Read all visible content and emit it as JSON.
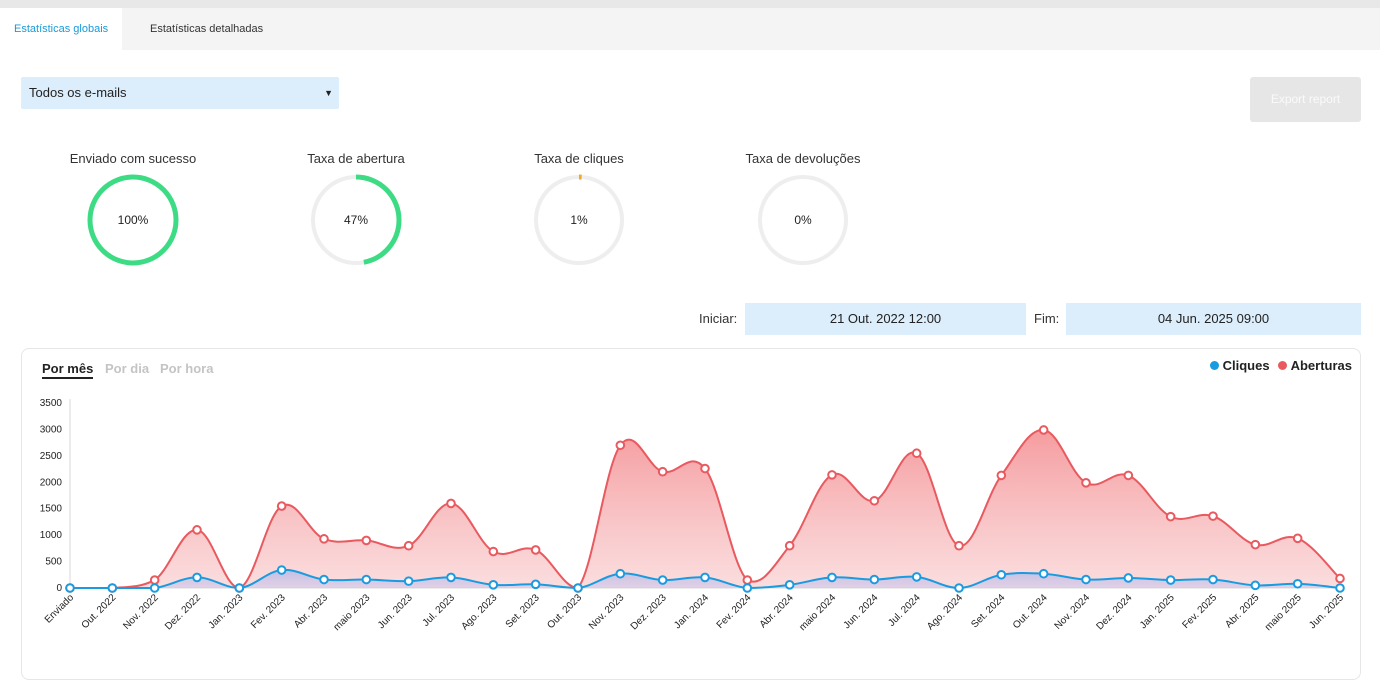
{
  "tabs": [
    {
      "label": "Estatísticas globais",
      "active": true
    },
    {
      "label": "Estatísticas detalhadas",
      "active": false
    }
  ],
  "filter": {
    "selected": "Todos os e-mails"
  },
  "export_label": "Export report",
  "stats": [
    {
      "label": "Enviado com sucesso",
      "value": 100,
      "display": "100%",
      "color": "#3ddc84"
    },
    {
      "label": "Taxa de abertura",
      "value": 47,
      "display": "47%",
      "color": "#3ddc84"
    },
    {
      "label": "Taxa de cliques",
      "value": 1,
      "display": "1%",
      "color": "#f5a623"
    },
    {
      "label": "Taxa de devoluções",
      "value": 0,
      "display": "0%",
      "color": "#3ddc84"
    }
  ],
  "dates": {
    "start_label": "Iniciar:",
    "start_value": "21 Out. 2022 12:00",
    "end_label": "Fim:",
    "end_value": "04 Jun. 2025 09:00"
  },
  "period_tabs": [
    {
      "label": "Por mês",
      "active": true
    },
    {
      "label": "Por dia",
      "active": false
    },
    {
      "label": "Por hora",
      "active": false
    }
  ],
  "colors": {
    "clicks": "#1a9be0",
    "opens": "#e85a5f",
    "accent": "#1a9bd7"
  },
  "chart_data": {
    "type": "area",
    "categories": [
      "Enviado",
      "Out. 2022",
      "Nov. 2022",
      "Dez. 2022",
      "Jan. 2023",
      "Fev. 2023",
      "Abr. 2023",
      "maio 2023",
      "Jun. 2023",
      "Jul. 2023",
      "Ago. 2023",
      "Set. 2023",
      "Out. 2023",
      "Nov. 2023",
      "Dez. 2023",
      "Jan. 2024",
      "Fev. 2024",
      "Abr. 2024",
      "maio 2024",
      "Jun. 2024",
      "Jul. 2024",
      "Ago. 2024",
      "Set. 2024",
      "Out. 2024",
      "Nov. 2024",
      "Dez. 2024",
      "Jan. 2025",
      "Fev. 2025",
      "Abr. 2025",
      "maio 2025",
      "Jun. 2025"
    ],
    "series": [
      {
        "name": "Aberturas",
        "color": "#e85a5f",
        "values": [
          0,
          0,
          150,
          1100,
          0,
          1550,
          930,
          900,
          800,
          1600,
          690,
          720,
          0,
          2700,
          2200,
          2260,
          150,
          800,
          2140,
          1650,
          2550,
          800,
          2130,
          2990,
          1990,
          2130,
          1350,
          1360,
          820,
          940,
          180
        ]
      },
      {
        "name": "Cliques",
        "color": "#1a9be0",
        "values": [
          0,
          0,
          0,
          200,
          0,
          340,
          160,
          160,
          130,
          200,
          60,
          70,
          0,
          270,
          150,
          200,
          0,
          60,
          200,
          160,
          210,
          0,
          250,
          270,
          160,
          190,
          150,
          160,
          50,
          80,
          0
        ]
      }
    ],
    "yticks": [
      0,
      500,
      1000,
      1500,
      2000,
      2500,
      3000,
      3500
    ],
    "ylim": [
      0,
      3500
    ],
    "legend": "top-right"
  }
}
